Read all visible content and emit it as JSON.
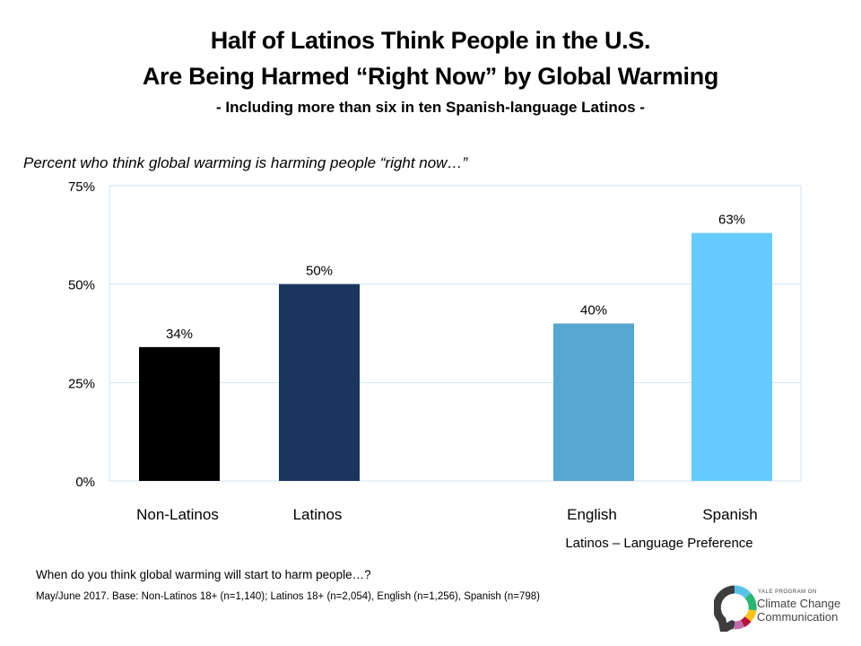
{
  "title_line1": "Half of Latinos Think People in the U.S.",
  "title_line2": "Are Being Harmed “Right Now” by Global Warming",
  "subtitle": "- Including more than six in ten Spanish-language Latinos -",
  "question_label": "Percent who think global warming is harming people “right now…”",
  "group_label": "Latinos – Language Preference",
  "question_text": "When do you think global warming will start to harm people…?",
  "base_note": "May/June 2017. Base: Non-Latinos 18+ (n=1,140); Latinos 18+ (n=2,054), English (n=1,256), Spanish (n=798)",
  "logo": {
    "small": "YALE PROGRAM ON",
    "line1": "Climate Change",
    "line2": "Communication"
  },
  "chart_data": {
    "type": "bar",
    "title": "Half of Latinos Think People in the U.S. Are Being Harmed “Right Now” by Global Warming",
    "subtitle": "- Including more than six in ten Spanish-language Latinos -",
    "ylabel": "Percent who think global warming is harming people “right now…”",
    "xlabel": "",
    "categories": [
      "Non-Latinos",
      "Latinos",
      "English",
      "Spanish"
    ],
    "values": [
      34,
      50,
      40,
      63
    ],
    "value_labels": [
      "34%",
      "50%",
      "40%",
      "63%"
    ],
    "colors": [
      "#000000",
      "#1b365d",
      "#55a6d0",
      "#66ccff"
    ],
    "ylim": [
      0,
      75
    ],
    "yticks": [
      0,
      25,
      50,
      75
    ],
    "ytick_labels": [
      "0%",
      "25%",
      "50%",
      "75%"
    ],
    "grid": true,
    "legend": "none",
    "group_annotation": "Latinos – Language Preference"
  }
}
